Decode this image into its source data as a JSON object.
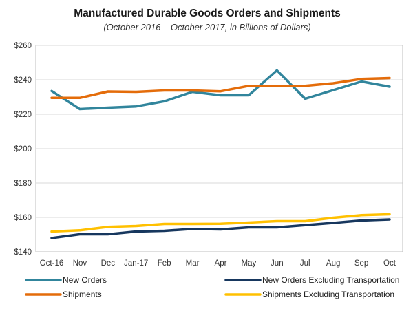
{
  "chart_data": {
    "type": "line",
    "title": "Manufactured Durable Goods Orders and Shipments",
    "subtitle": "(October 2016 – October 2017, in Billions of Dollars)",
    "xlabel": "",
    "ylabel": "",
    "categories": [
      "Oct-16",
      "Nov",
      "Dec",
      "Jan-17",
      "Feb",
      "Mar",
      "Apr",
      "May",
      "Jun",
      "Jul",
      "Aug",
      "Sep",
      "Oct"
    ],
    "ylim": [
      140,
      260
    ],
    "yticks": [
      140,
      160,
      180,
      200,
      220,
      240,
      260
    ],
    "ytick_labels": [
      "$140",
      "$160",
      "$180",
      "$200",
      "$220",
      "$240",
      "$260"
    ],
    "grid": true,
    "legend_position": "bottom",
    "series": [
      {
        "name": "New Orders",
        "color": "#31859c",
        "values": [
          233.5,
          223.0,
          223.8,
          224.5,
          227.5,
          233.0,
          231.0,
          231.0,
          245.5,
          229.0,
          234.0,
          239.0,
          236.0
        ]
      },
      {
        "name": "New Orders Excluding Transportation",
        "color": "#17375e",
        "values": [
          148.0,
          150.2,
          150.2,
          151.8,
          152.2,
          153.3,
          153.0,
          154.2,
          154.2,
          155.5,
          156.8,
          158.2,
          158.8
        ]
      },
      {
        "name": "Shipments",
        "color": "#e46c0a",
        "values": [
          229.5,
          229.5,
          233.2,
          233.0,
          233.8,
          233.8,
          233.3,
          236.5,
          236.3,
          236.5,
          238.0,
          240.5,
          241.0
        ]
      },
      {
        "name": "Shipments Excluding Transportation",
        "color": "#ffc000",
        "values": [
          151.8,
          152.5,
          154.5,
          155.0,
          156.2,
          156.2,
          156.3,
          157.0,
          157.8,
          157.8,
          159.8,
          161.3,
          161.8
        ]
      }
    ]
  }
}
